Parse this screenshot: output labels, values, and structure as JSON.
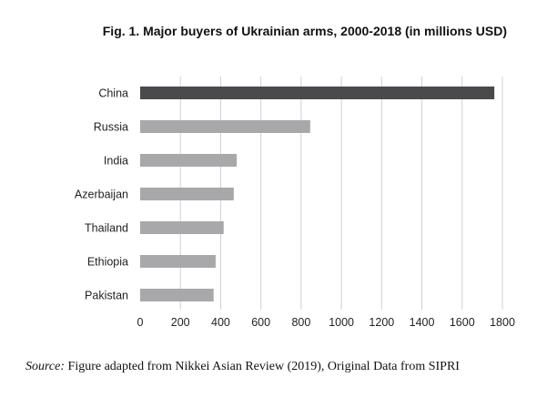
{
  "chart_data": {
    "type": "bar",
    "orientation": "horizontal",
    "title": "Fig. 1. Major buyers of Ukrainian arms, 2000-2018 (in millions USD)",
    "categories": [
      "China",
      "Russia",
      "India",
      "Azerbaijan",
      "Thailand",
      "Ethiopia",
      "Pakistan"
    ],
    "values": [
      1760,
      845,
      480,
      465,
      415,
      375,
      365
    ],
    "xlim": [
      0,
      1800
    ],
    "xticks": [
      0,
      200,
      400,
      600,
      800,
      1000,
      1200,
      1400,
      1600,
      1800
    ],
    "xlabel": "",
    "ylabel": "",
    "grid": "vertical",
    "legend": "none",
    "colors": {
      "highlight": "#4a4a4c",
      "default": "#a8a8ab",
      "grid": "#d0d0d0"
    },
    "highlight_category": "China"
  },
  "source": {
    "label": "Source:",
    "text": " Figure adapted from Nikkei Asian Review (2019), Original Data from SIPRI"
  }
}
